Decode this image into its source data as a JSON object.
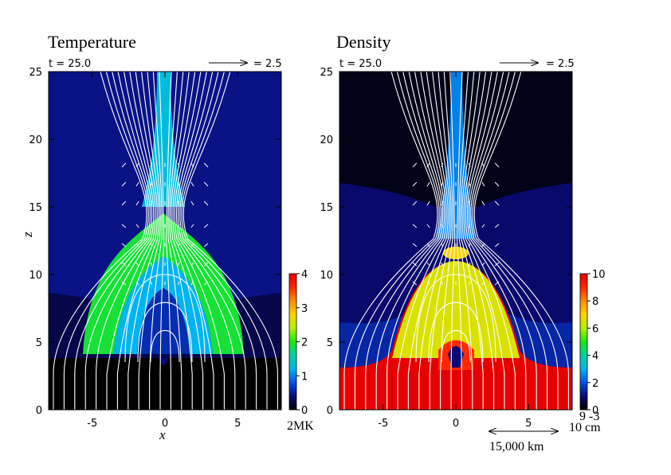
{
  "chart_data": [
    {
      "type": "heatmap",
      "title": "Temperature",
      "time_label": "t = 25.0",
      "arrow_scale_label": "= 2.5",
      "xlabel": "x",
      "ylabel": "z",
      "xlim": [
        -8,
        8
      ],
      "ylim": [
        0,
        25
      ],
      "x_ticks": [
        -5,
        0,
        5
      ],
      "y_ticks": [
        0,
        5,
        10,
        15,
        20,
        25
      ],
      "colorbar": {
        "range": [
          0,
          4
        ],
        "ticks": [
          0,
          1,
          2,
          3,
          4
        ],
        "unit": "2MK",
        "colors": [
          "#000000",
          "#0a0a78",
          "#0050e6",
          "#00b4f0",
          "#00d2a0",
          "#1ee614",
          "#b4f000",
          "#ffd200",
          "#ff8c00",
          "#ff2800",
          "#e60000"
        ]
      },
      "regions": [
        {
          "name": "background",
          "value": 0.45
        },
        {
          "name": "lower-corona",
          "value": 0.25
        },
        {
          "name": "chromosphere",
          "value": 0.0
        },
        {
          "name": "jet-column",
          "value": 1.3
        },
        {
          "name": "dome-shell",
          "value": 1.9
        },
        {
          "name": "dome-middle",
          "value": 1.2
        },
        {
          "name": "dome-core",
          "value": 0.6
        }
      ]
    },
    {
      "type": "heatmap",
      "title": "Density",
      "time_label": "t = 25.0",
      "arrow_scale_label": "= 2.5",
      "xlabel": "",
      "ylabel": "",
      "xlim": [
        -8,
        8
      ],
      "ylim": [
        0,
        25
      ],
      "x_ticks": [
        -5,
        0,
        5
      ],
      "y_ticks": [
        0,
        5,
        10,
        15,
        20,
        25
      ],
      "colorbar": {
        "range": [
          0,
          10
        ],
        "ticks": [
          0,
          2,
          4,
          6,
          8,
          10
        ],
        "unit_top": "9  -3",
        "unit_bottom": "10  cm",
        "colors": [
          "#000000",
          "#0a0a78",
          "#0050e6",
          "#00b4f0",
          "#00d2a0",
          "#1ee614",
          "#b4f000",
          "#ffd200",
          "#ff8c00",
          "#ff2800",
          "#e60000"
        ]
      },
      "regions": [
        {
          "name": "upper-corona",
          "value": 0.2
        },
        {
          "name": "mid-corona",
          "value": 0.9
        },
        {
          "name": "lower-corona",
          "value": 1.4
        },
        {
          "name": "chromosphere",
          "value": 10.0
        },
        {
          "name": "dome",
          "value": 6.5
        },
        {
          "name": "jet-column",
          "value": 2.5
        }
      ]
    }
  ],
  "scale_bar": {
    "label": "15,000 km"
  }
}
